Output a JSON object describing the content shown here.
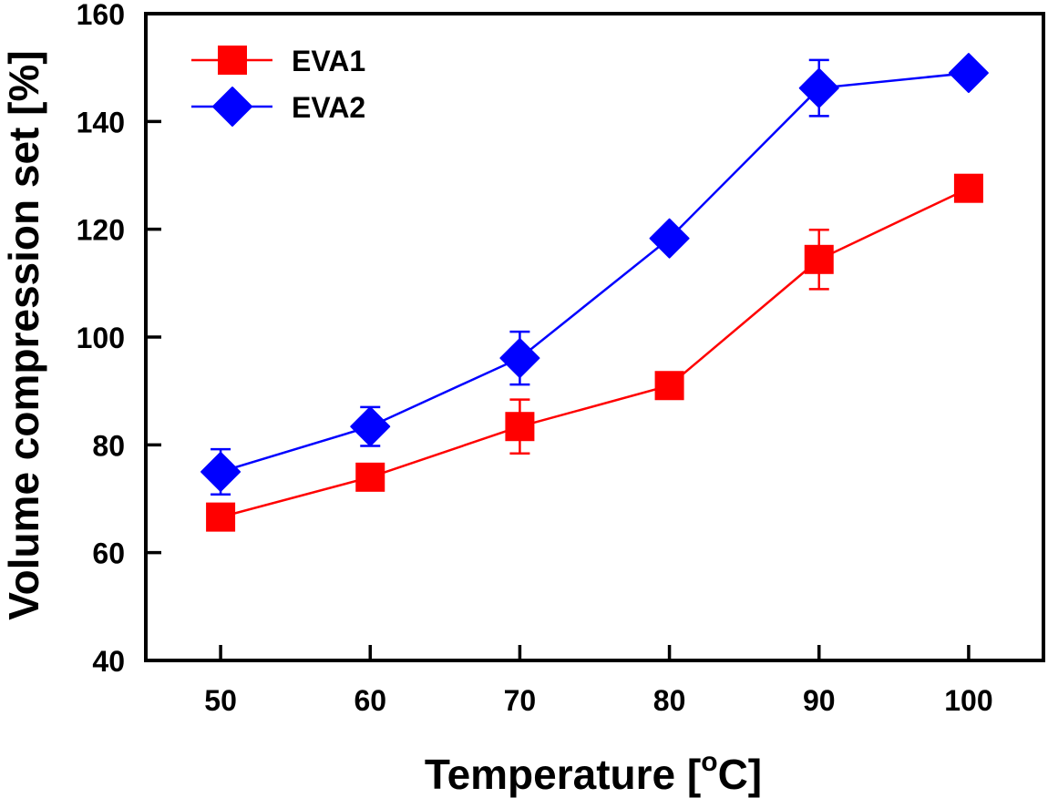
{
  "chart_data": {
    "type": "line",
    "title": "",
    "xlabel": "Temperature [°C]",
    "xlabel_parts": {
      "prefix": "Temperature [",
      "superscript": "o",
      "suffix": "C]"
    },
    "ylabel": "Volume compression set [%]",
    "xlim": [
      45,
      105
    ],
    "ylim": [
      40,
      160
    ],
    "xticks": [
      50,
      60,
      70,
      80,
      90,
      100
    ],
    "xtick_labels": [
      "50",
      "60",
      "70",
      "80",
      "90",
      "100"
    ],
    "yticks": [
      40,
      60,
      80,
      100,
      120,
      140,
      160
    ],
    "ytick_labels": [
      "40",
      "60",
      "80",
      "100",
      "120",
      "140",
      "160"
    ],
    "grid": false,
    "legend_position": "top-left",
    "x": [
      50,
      60,
      70,
      80,
      90,
      100
    ],
    "series": [
      {
        "name": "EVA1",
        "color": "#ff0000",
        "marker": "square",
        "values": [
          66.6,
          74.0,
          83.4,
          91.0,
          114.4,
          127.6
        ],
        "errors": [
          2.0,
          2.0,
          5.0,
          1.0,
          5.5,
          1.0
        ]
      },
      {
        "name": "EVA2",
        "color": "#0000ff",
        "marker": "diamond",
        "values": [
          75.0,
          83.4,
          96.1,
          118.3,
          146.2,
          149.0
        ],
        "errors": [
          4.2,
          3.6,
          4.9,
          1.0,
          5.2,
          1.0
        ]
      }
    ]
  }
}
